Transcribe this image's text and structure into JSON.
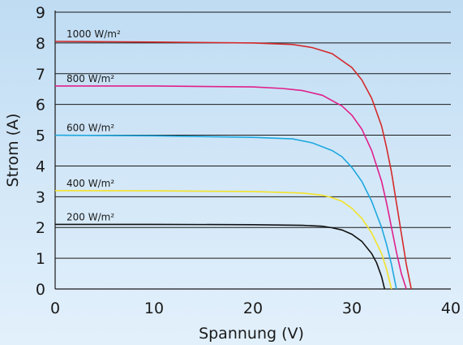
{
  "chart_data": {
    "type": "line",
    "title": "",
    "xlabel": "Spannung (V)",
    "ylabel": "Strom (A)",
    "xlim": [
      0,
      40
    ],
    "ylim": [
      0,
      9
    ],
    "xticks": [
      0,
      10,
      20,
      30,
      40
    ],
    "yticks": [
      0,
      1,
      2,
      3,
      4,
      5,
      6,
      7,
      8,
      9
    ],
    "grid": "horizontal",
    "background": "#cfe4f6",
    "series": [
      {
        "name": "1000 W/m²",
        "color": "#d42a2a",
        "x": [
          0,
          10,
          20,
          24,
          26,
          28,
          30,
          31,
          32,
          33,
          33.5,
          34,
          34.5,
          35,
          35.5,
          36
        ],
        "y": [
          8.05,
          8.03,
          8.0,
          7.95,
          7.85,
          7.65,
          7.2,
          6.8,
          6.2,
          5.3,
          4.6,
          3.8,
          2.8,
          1.8,
          0.8,
          0
        ]
      },
      {
        "name": "800 W/m²",
        "color": "#e0208c",
        "x": [
          0,
          10,
          20,
          23,
          25,
          27,
          29,
          30,
          31,
          32,
          33,
          33.5,
          34,
          34.5,
          35,
          35.5
        ],
        "y": [
          6.6,
          6.6,
          6.57,
          6.52,
          6.45,
          6.3,
          5.95,
          5.65,
          5.2,
          4.5,
          3.5,
          2.8,
          2.0,
          1.2,
          0.5,
          0
        ]
      },
      {
        "name": "600 W/m²",
        "color": "#1fa8df",
        "x": [
          0,
          10,
          20,
          24,
          26,
          28,
          29,
          30,
          31,
          32,
          33,
          33.5,
          34,
          34.5
        ],
        "y": [
          5.0,
          4.98,
          4.93,
          4.88,
          4.75,
          4.5,
          4.3,
          3.95,
          3.5,
          2.85,
          2.0,
          1.45,
          0.8,
          0
        ]
      },
      {
        "name": "400 W/m²",
        "color": "#f3e32a",
        "x": [
          0,
          10,
          20,
          25,
          27,
          28,
          29,
          30,
          31,
          32,
          33,
          33.5,
          34
        ],
        "y": [
          3.2,
          3.19,
          3.17,
          3.12,
          3.05,
          2.97,
          2.85,
          2.62,
          2.3,
          1.82,
          1.15,
          0.65,
          0
        ]
      },
      {
        "name": "200 W/m²",
        "color": "#111111",
        "x": [
          0,
          10,
          20,
          25,
          27,
          28,
          29,
          30,
          31,
          32,
          32.5,
          33,
          33.3
        ],
        "y": [
          2.1,
          2.1,
          2.09,
          2.07,
          2.04,
          1.99,
          1.92,
          1.78,
          1.55,
          1.15,
          0.85,
          0.4,
          0
        ]
      }
    ]
  }
}
